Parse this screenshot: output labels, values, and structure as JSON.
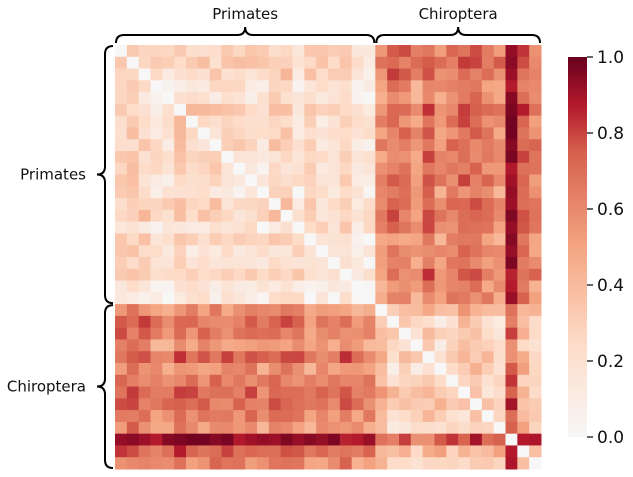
{
  "chart_data": {
    "type": "heatmap",
    "title": "",
    "groups": [
      {
        "name": "Primates",
        "size": 22
      },
      {
        "name": "Chiroptera",
        "size": 14
      }
    ],
    "group_labels": {
      "top_left": "Primates",
      "top_right": "Chiroptera",
      "left_top": "Primates",
      "left_bottom": "Chiroptera"
    },
    "value_range": [
      0.0,
      1.0
    ],
    "colormap": "RdBu_r (upper half: white to dark red)",
    "colorbar": {
      "ticks": [
        0.0,
        0.2,
        0.4,
        0.6,
        0.8,
        1.0
      ],
      "tick_labels": [
        "0.0",
        "0.2",
        "0.4",
        "0.6",
        "0.8",
        "1.0"
      ]
    },
    "block_means": {
      "primates_primates": 0.22,
      "primates_chiroptera": 0.65,
      "chiroptera_primates": 0.65,
      "chiroptera_chiroptera": 0.3
    },
    "diagonal_value": 0.0,
    "outlier_chiroptera_index": 11,
    "outlier_value": 0.95,
    "colors": {
      "low": "#f7f7f7",
      "high": "#67001f"
    }
  }
}
